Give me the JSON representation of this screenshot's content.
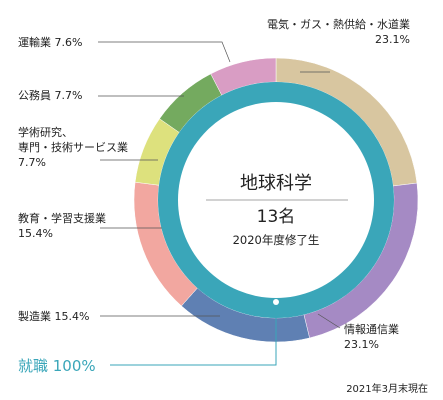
{
  "chart_data": {
    "type": "pie",
    "center": {
      "title": "地球科学",
      "count": "13名",
      "year": "2020年度修了生"
    },
    "slices": [
      {
        "lines": [
          "電気・ガス・熱供給・水道業",
          "23.1%"
        ],
        "value": 23.1,
        "color": "#d8c6a0"
      },
      {
        "lines": [
          "情報通信業",
          "23.1%"
        ],
        "value": 23.1,
        "color": "#a58ac4"
      },
      {
        "lines": [
          "製造業 15.4%"
        ],
        "value": 15.4,
        "color": "#5f80b3"
      },
      {
        "lines": [
          "教育・学習支援業",
          "15.4%"
        ],
        "value": 15.4,
        "color": "#f2a7a0"
      },
      {
        "lines": [
          "学術研究、",
          "専門・技術サービス業",
          "7.7%"
        ],
        "value": 7.7,
        "color": "#dde17d"
      },
      {
        "lines": [
          "公務員 7.7%"
        ],
        "value": 7.7,
        "color": "#74aa5f"
      },
      {
        "lines": [
          "運輸業 7.6%"
        ],
        "value": 7.6,
        "color": "#d99dc4"
      }
    ],
    "inner_ring": {
      "label": "就職 100%",
      "value": 100,
      "color": "#3aa6b9"
    },
    "note": "2021年3月末現在"
  }
}
